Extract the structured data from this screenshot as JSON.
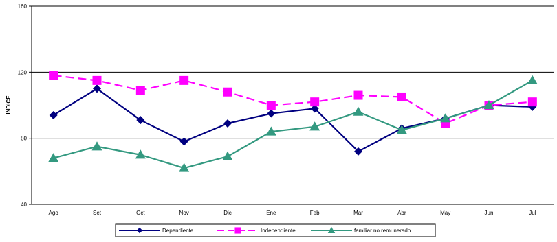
{
  "chart_data": {
    "type": "line",
    "categories": [
      "Ago",
      "Set",
      "Oct",
      "Nov",
      "Dic",
      "Ene",
      "Feb",
      "Mar",
      "Abr",
      "May",
      "Jun",
      "Jul"
    ],
    "ylabel": "INDICE",
    "xlabel": "",
    "title": "",
    "ylim": [
      40,
      160
    ],
    "yticks": [
      40,
      80,
      120,
      160
    ],
    "grid": true,
    "legend_position": "bottom",
    "series": [
      {
        "name": "Dependiente",
        "color": "#000080",
        "dash": "solid",
        "marker": "diamond",
        "values": [
          94,
          110,
          91,
          78,
          89,
          95,
          98,
          72,
          86,
          92,
          100,
          99
        ]
      },
      {
        "name": "Independiente",
        "color": "#ff00ff",
        "dash": "dashed",
        "marker": "square",
        "values": [
          118,
          115,
          109,
          115,
          108,
          100,
          102,
          106,
          105,
          89,
          100,
          102
        ]
      },
      {
        "name": "familiar no remunerado",
        "color": "#339980",
        "dash": "solid",
        "marker": "triangle",
        "values": [
          68,
          75,
          70,
          62,
          69,
          84,
          87,
          96,
          85,
          92,
          100,
          115
        ]
      }
    ]
  }
}
